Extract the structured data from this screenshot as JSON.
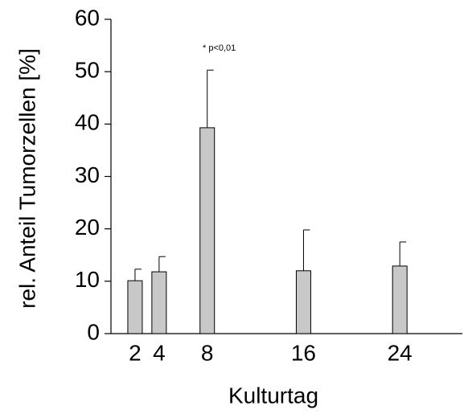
{
  "chart_data": {
    "type": "bar",
    "x_label": "Kulturtag",
    "y_label": "rel. Anteil Tumorzellen [%]",
    "annotation": "* p<0,01",
    "x": [
      2,
      4,
      8,
      16,
      24
    ],
    "values": [
      10.1,
      11.8,
      39.3,
      12.0,
      12.9
    ],
    "errors": [
      2.2,
      2.9,
      11.0,
      7.8,
      4.6
    ],
    "color": "#c8c8c8",
    "xlim": [
      0,
      29.2
    ],
    "xticks": [
      2,
      4,
      8,
      16,
      24
    ],
    "ylim": [
      0,
      60
    ],
    "yticks": [
      0,
      10,
      20,
      30,
      40,
      50,
      60
    ],
    "grid": false
  }
}
